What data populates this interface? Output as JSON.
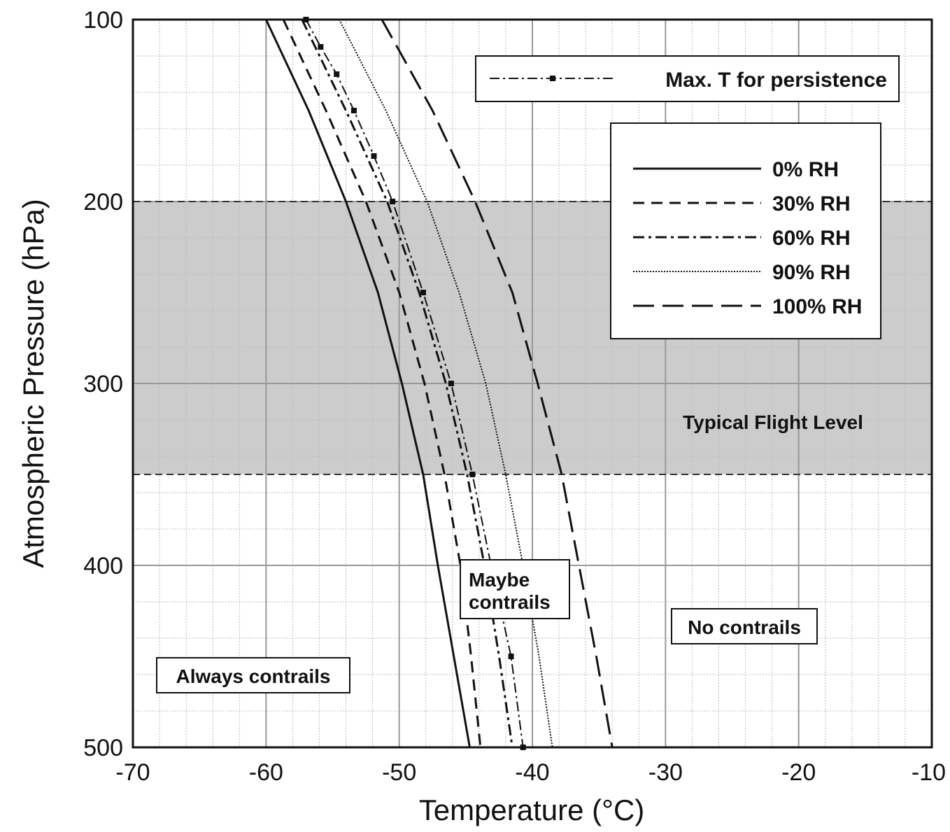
{
  "chart_data": {
    "type": "line",
    "xlabel": "Temperature (°C)",
    "ylabel": "Atmospheric Pressure (hPa)",
    "xlim": [
      -70,
      -10
    ],
    "ylim": [
      100,
      500
    ],
    "y_inverted": true,
    "x_ticks": [
      -70,
      -60,
      -50,
      -40,
      -30,
      -20,
      -10
    ],
    "x_tick_labels": [
      "-70",
      "-60",
      "-50",
      "-40",
      "-30",
      "-20",
      "-10"
    ],
    "y_ticks": [
      100,
      200,
      300,
      400,
      500
    ],
    "y_tick_labels": [
      "100",
      "200",
      "300",
      "400",
      "500"
    ],
    "grid": true,
    "legend_position": "top-right",
    "shaded_band": {
      "label": "Typical Flight Level",
      "y_range": [
        200,
        350
      ],
      "color": "#cccccc"
    },
    "series": [
      {
        "name": "0% RH",
        "style": "solid",
        "points": [
          [
            -60,
            100
          ],
          [
            -56.8,
            150
          ],
          [
            -54.0,
            200
          ],
          [
            -51.6,
            250
          ],
          [
            -49.8,
            300
          ],
          [
            -48.2,
            350
          ],
          [
            -47.1,
            400
          ],
          [
            -45.9,
            450
          ],
          [
            -44.7,
            500
          ]
        ]
      },
      {
        "name": "30% RH",
        "style": "dashed",
        "points": [
          [
            -58.7,
            100
          ],
          [
            -55.5,
            150
          ],
          [
            -52.5,
            200
          ],
          [
            -50.0,
            250
          ],
          [
            -48.1,
            300
          ],
          [
            -46.6,
            350
          ],
          [
            -45.4,
            400
          ],
          [
            -44.6,
            450
          ],
          [
            -43.9,
            500
          ]
        ]
      },
      {
        "name": "60% RH",
        "style": "dashdot",
        "points": [
          [
            -57.3,
            100
          ],
          [
            -54.0,
            150
          ],
          [
            -50.9,
            200
          ],
          [
            -48.5,
            250
          ],
          [
            -46.5,
            300
          ],
          [
            -44.9,
            350
          ],
          [
            -43.6,
            400
          ],
          [
            -42.5,
            450
          ],
          [
            -41.5,
            500
          ]
        ]
      },
      {
        "name": "90% RH",
        "style": "dotted",
        "points": [
          [
            -54.5,
            100
          ],
          [
            -51.0,
            150
          ],
          [
            -47.9,
            200
          ],
          [
            -45.5,
            250
          ],
          [
            -43.5,
            300
          ],
          [
            -42.0,
            350
          ],
          [
            -40.7,
            400
          ],
          [
            -39.5,
            450
          ],
          [
            -38.5,
            500
          ]
        ]
      },
      {
        "name": "100% RH",
        "style": "longdash",
        "points": [
          [
            -51.3,
            100
          ],
          [
            -47.5,
            150
          ],
          [
            -44.3,
            200
          ],
          [
            -41.5,
            250
          ],
          [
            -39.6,
            300
          ],
          [
            -37.8,
            350
          ],
          [
            -36.5,
            400
          ],
          [
            -35.2,
            450
          ],
          [
            -34.0,
            500
          ]
        ]
      },
      {
        "name": "Max. T for persistence",
        "style": "dashdot-marker",
        "points": [
          [
            -57.0,
            100
          ],
          [
            -55.9,
            115
          ],
          [
            -54.7,
            130
          ],
          [
            -53.4,
            150
          ],
          [
            -51.9,
            175
          ],
          [
            -50.5,
            200
          ],
          [
            -48.2,
            250
          ],
          [
            -46.1,
            300
          ],
          [
            -44.5,
            350
          ],
          [
            -43.1,
            400
          ],
          [
            -41.6,
            450
          ],
          [
            -40.7,
            500
          ]
        ]
      }
    ],
    "annotations": {
      "always": "Always contrails",
      "maybe_line1": "Maybe",
      "maybe_line2": "contrails",
      "no": "No contrails"
    }
  },
  "colors": {
    "shade": "#cccccc",
    "line": "#111111",
    "grid_major": "#999999",
    "grid_minor": "#bbbbbb"
  }
}
